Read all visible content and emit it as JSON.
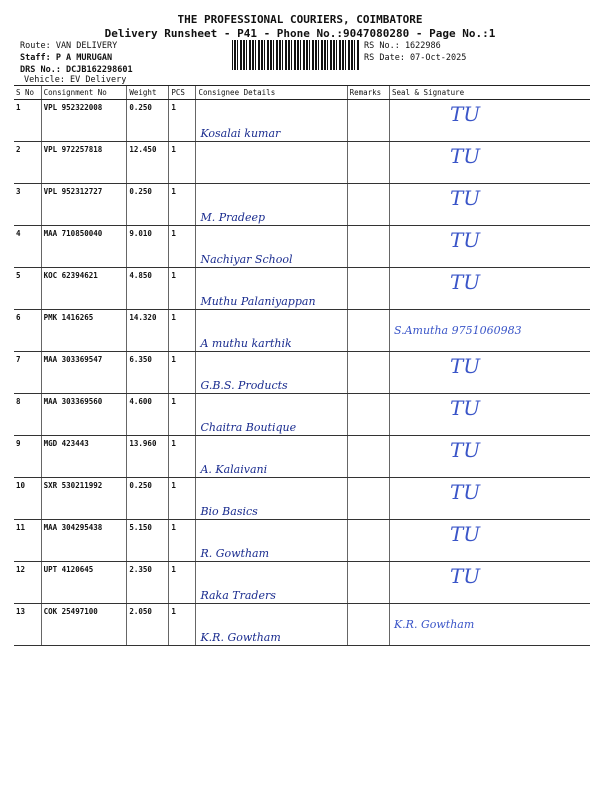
{
  "header": {
    "title": "THE PROFESSIONAL COURIERS, COIMBATORE",
    "subtitle": "Delivery Runsheet - P41 - Phone No.:9047080280 - Page No.:1",
    "route": "Route: VAN DELIVERY",
    "staff": "Staff: P A MURUGAN",
    "drs": "DRS No.: DCJB162298601",
    "vehicle": "Vehicle: EV Delivery",
    "rs_no": "RS No.: 1622986",
    "rs_date": "RS Date: 07-Oct-2025"
  },
  "columns": [
    "S No",
    "Consignment No",
    "Weight",
    "PCS",
    "Consignee Details",
    "Remarks",
    "Seal & Signature"
  ],
  "rows": [
    {
      "sno": "1",
      "cn": "VPL 952322008",
      "wt": "0.250",
      "pcs": "1",
      "consignee": "Kosalai kumar",
      "sig": "TU"
    },
    {
      "sno": "2",
      "cn": "VPL 972257818",
      "wt": "12.450",
      "pcs": "1",
      "consignee": "",
      "sig": "TU"
    },
    {
      "sno": "3",
      "cn": "VPL 952312727",
      "wt": "0.250",
      "pcs": "1",
      "consignee": "M. Pradeep",
      "sig": "TU"
    },
    {
      "sno": "4",
      "cn": "MAA 710850040",
      "wt": "9.010",
      "pcs": "1",
      "consignee": "Nachiyar School",
      "sig": "TU"
    },
    {
      "sno": "5",
      "cn": "KOC 62394621",
      "wt": "4.850",
      "pcs": "1",
      "consignee": "Muthu Palaniyappan",
      "sig": "TU"
    },
    {
      "sno": "6",
      "cn": "PMK 1416265",
      "wt": "14.320",
      "pcs": "1",
      "consignee": "A muthu karthik",
      "sig": "S.Amutha 9751060983"
    },
    {
      "sno": "7",
      "cn": "MAA 303369547",
      "wt": "6.350",
      "pcs": "1",
      "consignee": "G.B.S. Products",
      "sig": "TU"
    },
    {
      "sno": "8",
      "cn": "MAA 303369560",
      "wt": "4.600",
      "pcs": "1",
      "consignee": "Chaitra Boutique",
      "sig": "TU"
    },
    {
      "sno": "9",
      "cn": "MGD 423443",
      "wt": "13.960",
      "pcs": "1",
      "consignee": "A. Kalaivani",
      "sig": "TU"
    },
    {
      "sno": "10",
      "cn": "SXR 530211992",
      "wt": "0.250",
      "pcs": "1",
      "consignee": "Bio Basics",
      "sig": "TU"
    },
    {
      "sno": "11",
      "cn": "MAA 304295438",
      "wt": "5.150",
      "pcs": "1",
      "consignee": "R. Gowtham",
      "sig": "TU"
    },
    {
      "sno": "12",
      "cn": "UPT 4120645",
      "wt": "2.350",
      "pcs": "1",
      "consignee": "Raka Traders",
      "sig": "TU"
    },
    {
      "sno": "13",
      "cn": "COK 25497100",
      "wt": "2.050",
      "pcs": "1",
      "consignee": "K.R. Gowtham",
      "sig": "K.R. Gowtham"
    }
  ]
}
